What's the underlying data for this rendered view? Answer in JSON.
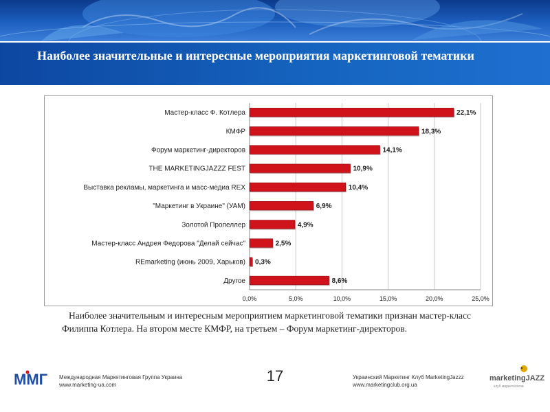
{
  "slide": {
    "title": "Наиболее значительные и интересные мероприятия маркетинговой тематики",
    "caption": "Наиболее значительным и интересным мероприятием маркетинговой тематики признан мастер-класс Филиппа Котлера. На втором месте КМФР, на третьем – Форум маркетинг-директоров.",
    "page_number": "17"
  },
  "footer": {
    "left_org": "Международная Маркетинговая Группа Украина",
    "left_url": "www.marketing-ua.com",
    "right_org": "Украинский Маркетинг Клуб MarketingJazzz",
    "right_url": "www.marketingclub.org.ua",
    "left_logo_text": "ММГ",
    "right_logo_text": "marketingJAZZZ",
    "right_logo_tagline": "клуб маркетологов"
  },
  "colors": {
    "bar": "#d0121b",
    "banner": "#1565c0"
  },
  "chart_data": {
    "type": "bar",
    "orientation": "horizontal",
    "categories": [
      "Мастер-класс Ф. Котлера",
      "КМФР",
      "Форум маркетинг-директоров",
      "THE MARKETINGJAZZZ FEST",
      "Выставка рекламы, маркетинга и масс-медиа REX",
      "\"Маркетинг в Украине\" (УАМ)",
      "Золотой Пропеллер",
      "Мастер-класс Андрея Федорова \"Делай сейчас\"",
      "REmarketing (июнь 2009, Харьков)",
      "Другое"
    ],
    "values": [
      22.1,
      18.3,
      14.1,
      10.9,
      10.4,
      6.9,
      4.9,
      2.5,
      0.3,
      8.6
    ],
    "value_labels": [
      "22,1%",
      "18,3%",
      "14,1%",
      "10,9%",
      "10,4%",
      "6,9%",
      "4,9%",
      "2,5%",
      "0,3%",
      "8,6%"
    ],
    "xticks": [
      0,
      5,
      10,
      15,
      20,
      25
    ],
    "xtick_labels": [
      "0,0%",
      "5,0%",
      "10,0%",
      "15,0%",
      "20,0%",
      "25,0%"
    ],
    "xlim": [
      0,
      25
    ],
    "grid": "vertical",
    "legend": "none"
  }
}
